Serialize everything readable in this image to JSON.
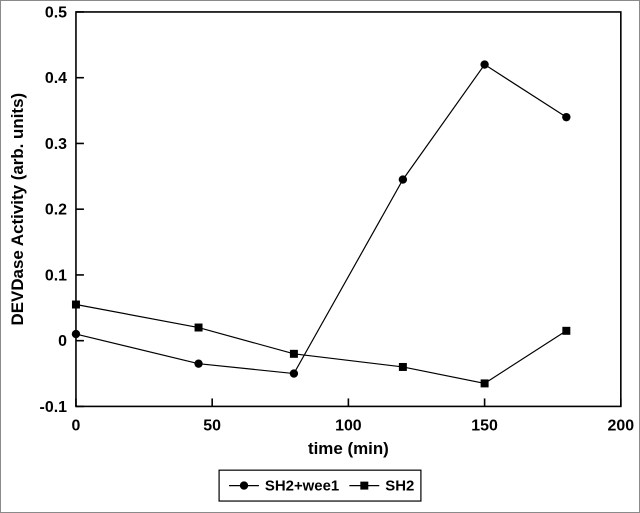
{
  "figure": {
    "background": "#ffffff",
    "border_color": "#8a8a8a"
  },
  "chart_data": {
    "type": "line",
    "title": "",
    "xlabel": "time (min)",
    "ylabel": "DEVDase Activity (arb. units)",
    "xlim": [
      0,
      200
    ],
    "ylim": [
      -0.1,
      0.5
    ],
    "xticks": [
      0,
      50,
      100,
      150,
      200
    ],
    "xtick_labels": [
      "0",
      "50",
      "100",
      "150",
      "200"
    ],
    "yticks": [
      -0.1,
      0,
      0.1,
      0.2,
      0.3,
      0.4,
      0.5
    ],
    "ytick_labels": [
      "-0.1",
      "0",
      "0.1",
      "0.2",
      "0.3",
      "0.4",
      "0.5"
    ],
    "grid": false,
    "legend": {
      "position": "bottom-center",
      "border": true
    },
    "colors": {
      "line": "#000000",
      "marker": "#000000",
      "frame": "#000000",
      "background": "#ffffff"
    },
    "series": [
      {
        "name": "SH2+wee1",
        "marker": "circle",
        "x": [
          0,
          45,
          80,
          120,
          150,
          180
        ],
        "y": [
          0.01,
          -0.035,
          -0.05,
          0.245,
          0.42,
          0.34
        ]
      },
      {
        "name": "SH2",
        "marker": "square",
        "x": [
          0,
          45,
          80,
          120,
          150,
          180
        ],
        "y": [
          0.055,
          0.02,
          -0.02,
          -0.04,
          -0.065,
          0.015
        ]
      }
    ]
  }
}
